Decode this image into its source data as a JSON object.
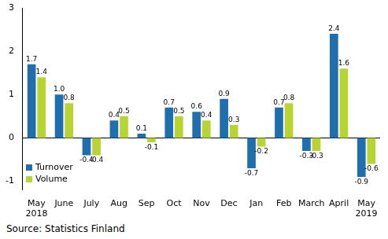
{
  "chart_data": {
    "type": "bar",
    "categories": [
      "May 2018",
      "June",
      "July",
      "Aug",
      "Sep",
      "Oct",
      "Nov",
      "Dec",
      "Jan",
      "Feb",
      "March",
      "April",
      "May 2019"
    ],
    "series": [
      {
        "name": "Turnover",
        "color": "#1f6fae",
        "values": [
          1.7,
          1.0,
          -0.4,
          0.4,
          0.1,
          0.7,
          0.6,
          0.9,
          -0.7,
          0.7,
          -0.3,
          2.4,
          -0.9
        ],
        "value_labels": [
          "1.7",
          "1.0",
          "-0.4",
          "0.4",
          "0.1",
          "0.7",
          "0.6",
          "0.9",
          "-0.7",
          "0.7",
          "-0.3",
          "2.4",
          "-0.9"
        ]
      },
      {
        "name": "Volume",
        "color": "#b8d432",
        "values": [
          1.4,
          0.8,
          -0.4,
          0.5,
          -0.1,
          0.5,
          0.4,
          0.3,
          -0.2,
          0.8,
          -0.3,
          1.6,
          -0.6
        ],
        "value_labels": [
          "1.4",
          "0.8",
          "-0.4",
          "0.5",
          "-0.1",
          "0.5",
          "0.4",
          "0.3",
          "-0.2",
          "0.8",
          "-0.3",
          "1.6",
          "-0.6"
        ]
      }
    ],
    "ylim": [
      -1.2,
      3
    ],
    "yticks": [
      -1,
      0,
      1,
      2,
      3
    ],
    "grid": false,
    "legend": "lower left",
    "data_labels": true,
    "source": "Source: Statistics Finland"
  }
}
